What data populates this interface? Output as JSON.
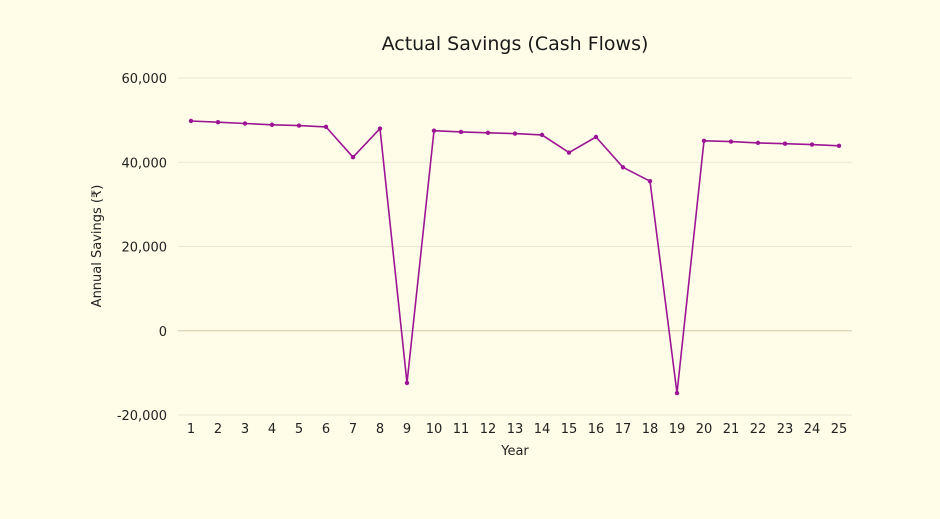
{
  "chart_data": {
    "type": "line",
    "title": "Actual Savings (Cash Flows)",
    "xlabel": "Year",
    "ylabel": "Annual Savings (₹)",
    "ylim": [
      -20000,
      60000
    ],
    "yticks": [
      60000,
      40000,
      20000,
      0,
      -20000
    ],
    "ytick_labels": [
      "60,000",
      "40,000",
      "20,000",
      "0",
      "-20,000"
    ],
    "categories": [
      "1",
      "2",
      "3",
      "4",
      "5",
      "6",
      "7",
      "8",
      "9",
      "10",
      "11",
      "12",
      "13",
      "14",
      "15",
      "16",
      "17",
      "18",
      "19",
      "20",
      "21",
      "22",
      "23",
      "24",
      "25"
    ],
    "series": [
      {
        "values": [
          49800,
          49500,
          49200,
          48900,
          48700,
          48400,
          41200,
          48000,
          -12400,
          47500,
          47200,
          47000,
          46800,
          46500,
          42300,
          46000,
          38800,
          35500,
          -14800,
          45100,
          44900,
          44600,
          44400,
          44200,
          43900
        ],
        "color": "#9b1594"
      }
    ],
    "grid": true,
    "legend": "none",
    "background": "#fffde8"
  }
}
